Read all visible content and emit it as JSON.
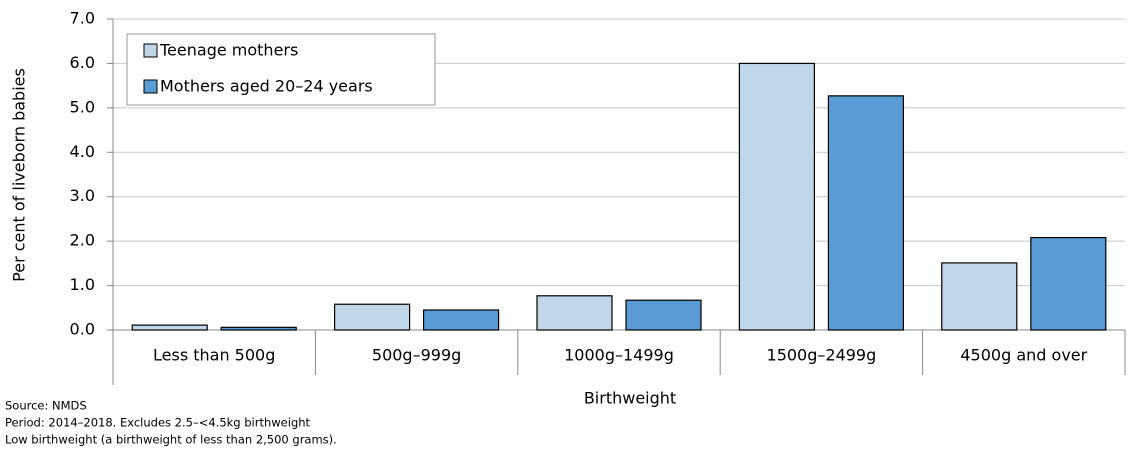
{
  "chart_data": {
    "type": "bar",
    "y_label": "Per cent of liveborn babies",
    "x_label": "Birthweight",
    "categories": [
      "Less than 500g",
      "500g–999g",
      "1000g–1499g",
      "1500g–2499g",
      "4500g and over"
    ],
    "series": [
      {
        "name": "Teenage mothers",
        "color": "#bfd7e8",
        "values": [
          0.11,
          0.58,
          0.77,
          6.0,
          1.51
        ]
      },
      {
        "name": "Mothers aged 20–24 years",
        "color": "#5b9bd5",
        "values": [
          0.06,
          0.45,
          0.67,
          5.27,
          2.08
        ]
      }
    ],
    "ylim": [
      0,
      7
    ],
    "yticks": [
      {
        "value": 0,
        "label": "0.0"
      },
      {
        "value": 1,
        "label": "1.0"
      },
      {
        "value": 2,
        "label": "2.0"
      },
      {
        "value": 3,
        "label": "3.0"
      },
      {
        "value": 4,
        "label": "4.0"
      },
      {
        "value": 5,
        "label": "5.0"
      },
      {
        "value": 6,
        "label": "6.0"
      },
      {
        "value": 7,
        "label": "7.0"
      }
    ],
    "grid": true,
    "legend": "top-left",
    "notes": [
      "Source: NMDS",
      "Period: 2014–2018. Excludes 2.5–<4.5kg birthweight",
      "Low birthweight (a birthweight of less than 2,500 grams)."
    ]
  }
}
